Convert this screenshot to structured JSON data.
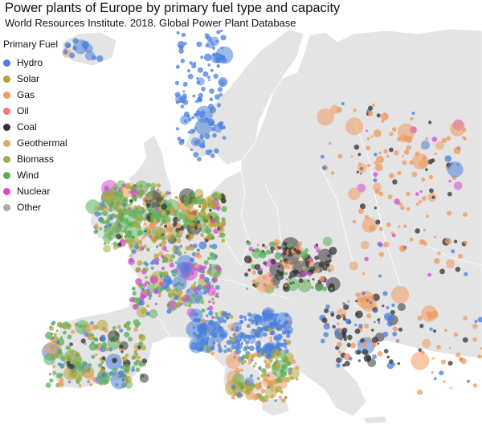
{
  "title": "Power plants of Europe by primary fuel type and capacity",
  "subtitle": "World Resources Institute. 2018. Global Power Plant Database",
  "legend": {
    "title": "Primary Fuel",
    "items": [
      {
        "label": "Hydro",
        "color": "#4a7fdc"
      },
      {
        "label": "Solar",
        "color": "#b3a436"
      },
      {
        "label": "Gas",
        "color": "#ef9a5e"
      },
      {
        "label": "Oil",
        "color": "#f07a80"
      },
      {
        "label": "Coal",
        "color": "#333333"
      },
      {
        "label": "Geothermal",
        "color": "#e0a86e"
      },
      {
        "label": "Biomass",
        "color": "#a7ab4c"
      },
      {
        "label": "Wind",
        "color": "#5aae5a"
      },
      {
        "label": "Nuclear",
        "color": "#d14bd0"
      },
      {
        "label": "Other",
        "color": "#aaaaaa"
      }
    ]
  },
  "colors": {
    "land": "#e4e4e4",
    "border": "#ffffff",
    "sea": "#ffffff"
  }
}
